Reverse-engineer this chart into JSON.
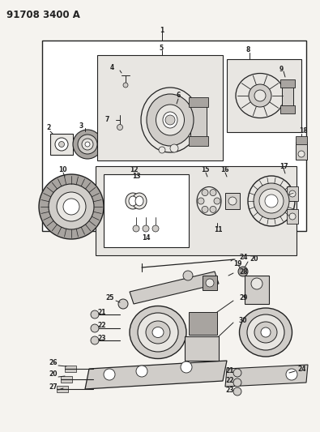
{
  "title": "91708 3400 A",
  "bg_color": "#f5f3ef",
  "fig_width": 3.95,
  "fig_height": 5.33,
  "dpi": 100,
  "lc": "#222222",
  "fc_white": "#ffffff",
  "fc_light": "#e8e6e2",
  "fc_part": "#d0cdc9",
  "fc_dark": "#a8a4a0"
}
